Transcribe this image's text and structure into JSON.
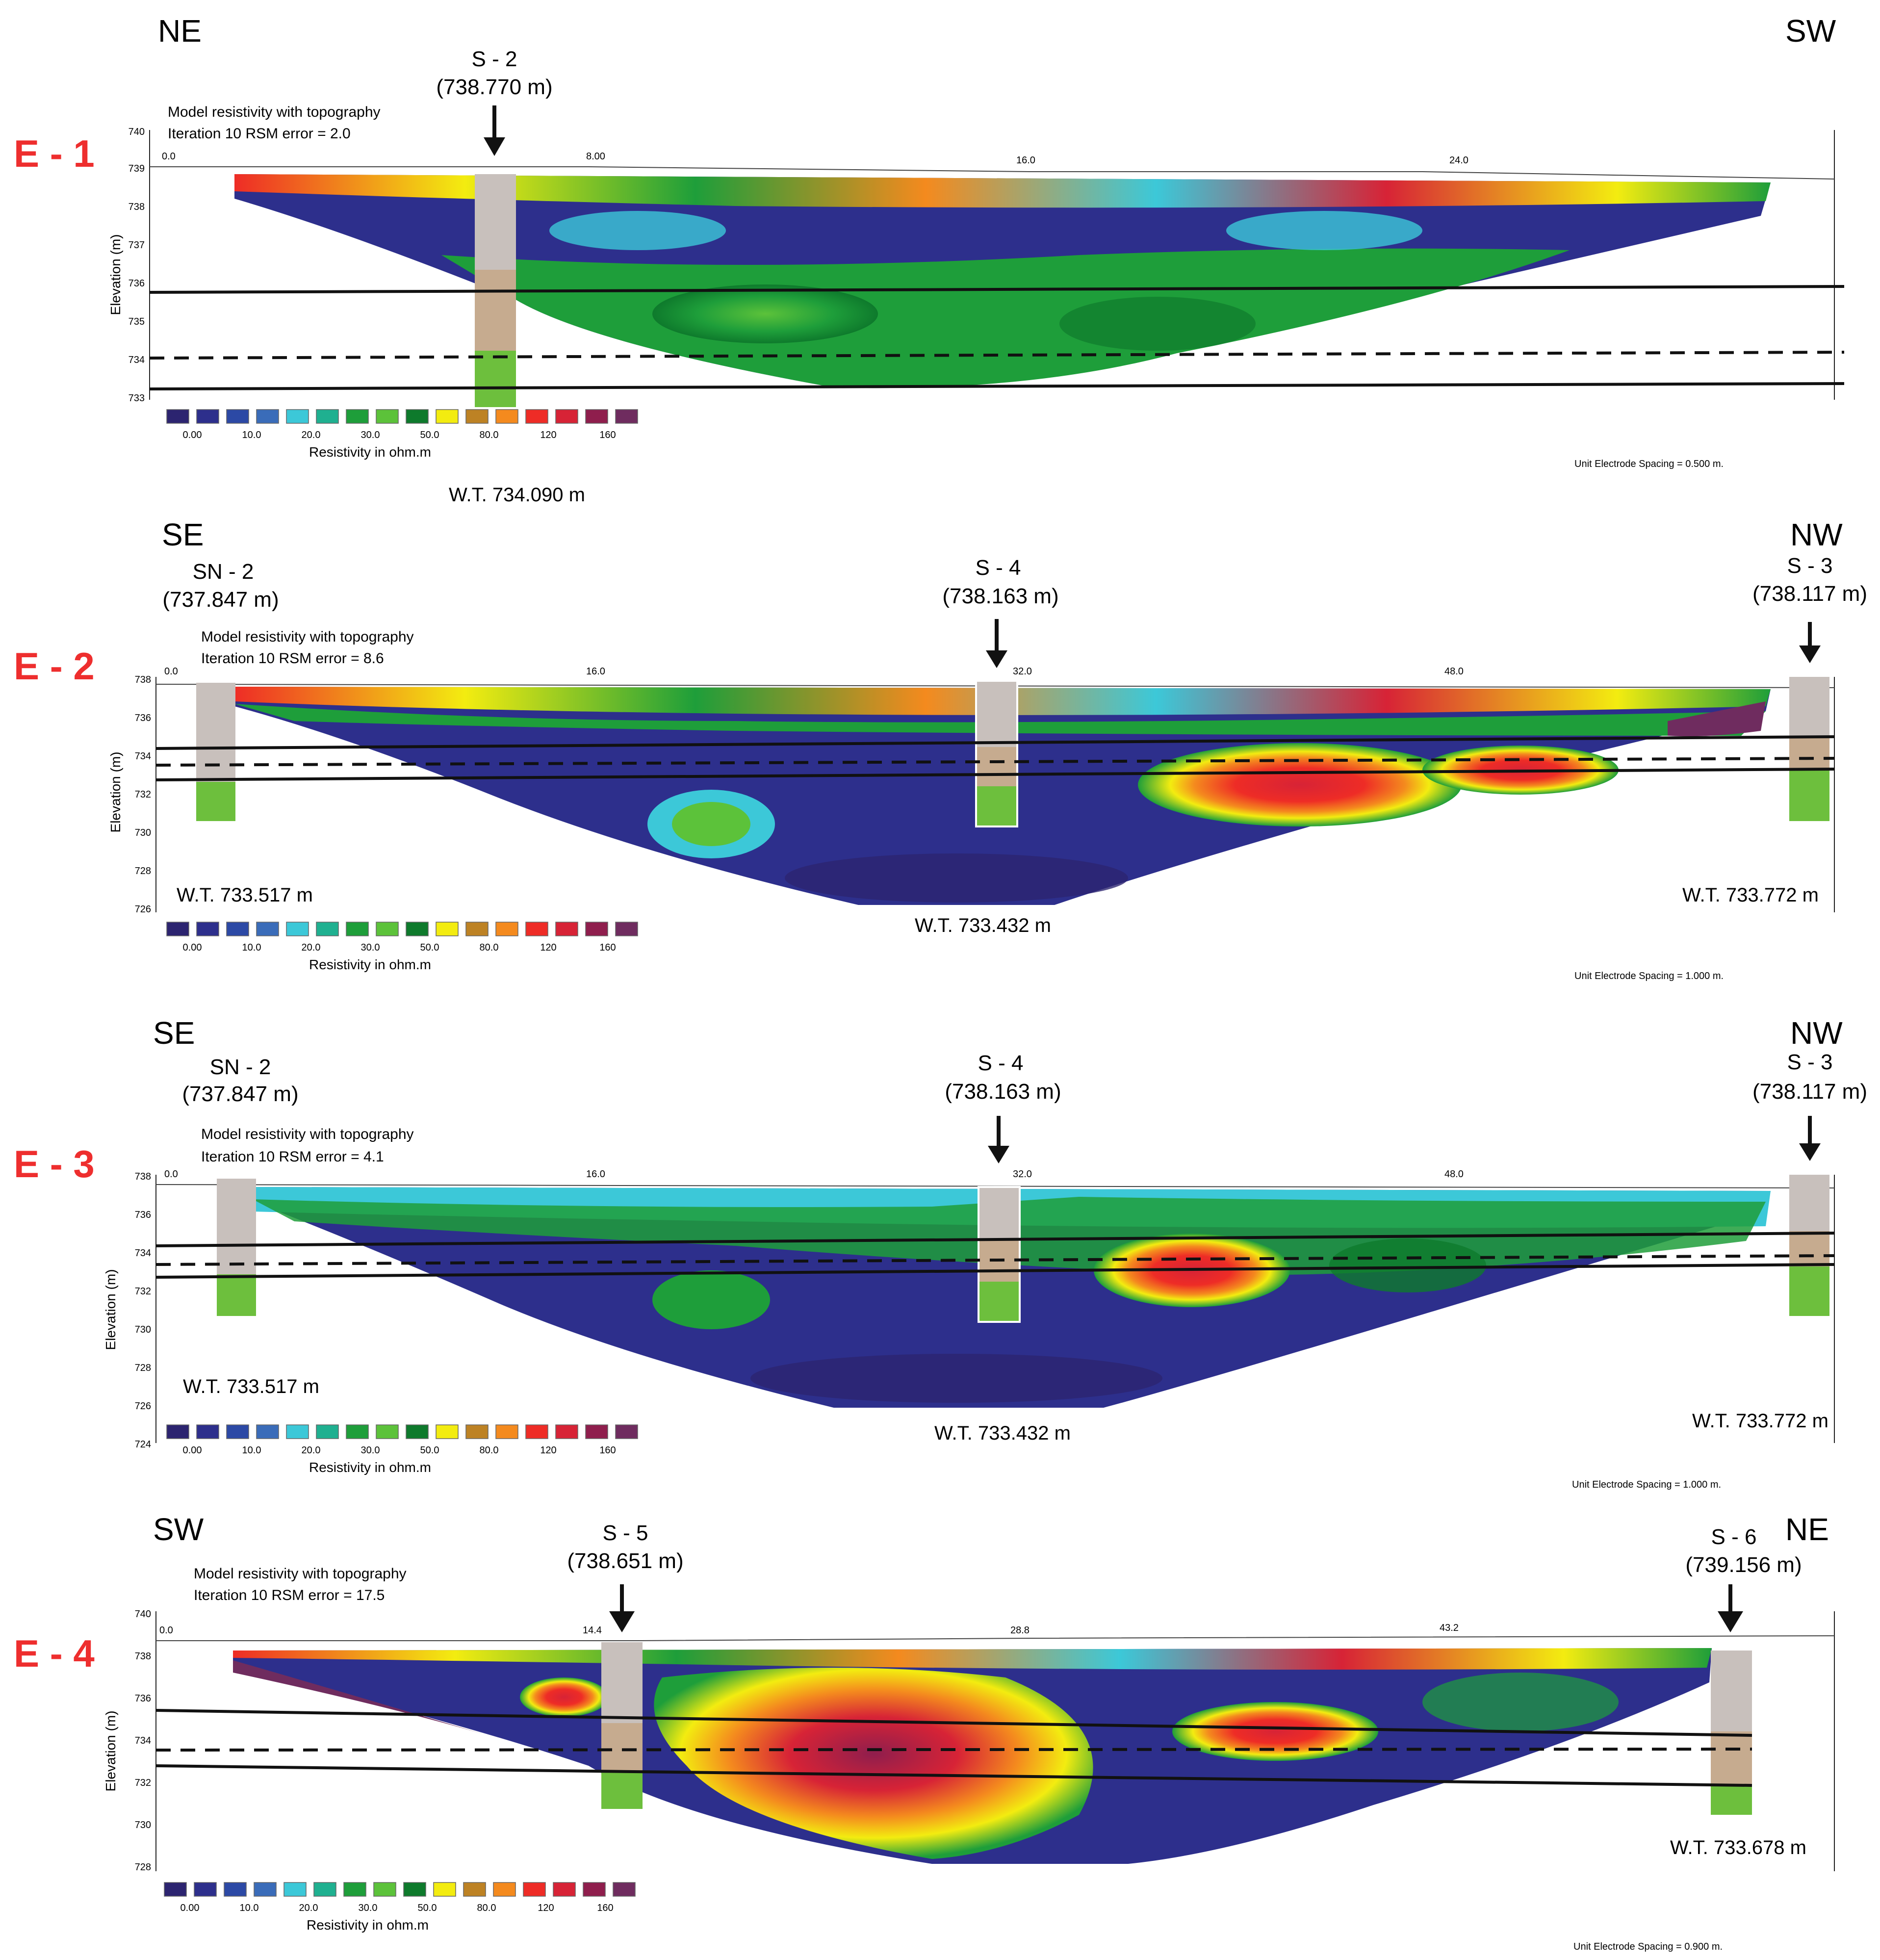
{
  "legend": {
    "ticks": [
      "0.00",
      "10.0",
      "20.0",
      "30.0",
      "50.0",
      "80.0",
      "120",
      "160"
    ],
    "title": "Resistivity in ohm.m",
    "colors": [
      "#2c2470",
      "#2d2f8c",
      "#2c49a5",
      "#3a6cb9",
      "#3cc8d8",
      "#1fb090",
      "#1e9e3a",
      "#5cc23a",
      "#0e7a2c",
      "#f3ec10",
      "#bd8224",
      "#f48a1e",
      "#ee2c26",
      "#d72336",
      "#8f1e4d",
      "#6f2c5f"
    ]
  },
  "colors": {
    "panel_label": "#ee2e2e",
    "sand": "#c6ab8f",
    "clay_top": "#c8c0bc",
    "green_layer": "#6dbf3d"
  },
  "panels": [
    {
      "id": "E - 1",
      "orient_left": "NE",
      "orient_right": "SW",
      "wells": [
        {
          "name": "S - 2",
          "elev": "(738.770 m)",
          "wt": "W.T. 734.090 m"
        }
      ],
      "model_title": "Model resistivity with topography",
      "iteration": "Iteration 10 RSM error = 2.0",
      "x_ticks": [
        "0.0",
        "8.00",
        "16.0",
        "24.0"
      ],
      "y_ticks": [
        "740",
        "739",
        "738",
        "737",
        "736",
        "735",
        "734",
        "733"
      ],
      "y_label": "Elevation (m)",
      "spacing": "Unit Electrode Spacing = 0.500 m."
    },
    {
      "id": "E - 2",
      "orient_left": "SE",
      "orient_right": "NW",
      "wells": [
        {
          "name": "SN - 2",
          "elev": "(737.847 m)",
          "wt": "W.T. 733.517 m"
        },
        {
          "name": "S - 4",
          "elev": "(738.163 m)",
          "wt": "W.T. 733.432 m"
        },
        {
          "name": "S - 3",
          "elev": "(738.117 m)",
          "wt": "W.T. 733.772 m"
        }
      ],
      "model_title": "Model resistivity with topography",
      "iteration": "Iteration 10 RSM error = 8.6",
      "x_ticks": [
        "0.0",
        "16.0",
        "32.0",
        "48.0"
      ],
      "y_ticks": [
        "738",
        "736",
        "734",
        "732",
        "730",
        "728",
        "726"
      ],
      "y_label": "Elevation (m)",
      "spacing": "Unit Electrode Spacing = 1.000 m."
    },
    {
      "id": "E - 3",
      "orient_left": "SE",
      "orient_right": "NW",
      "wells": [
        {
          "name": "SN - 2",
          "elev": "(737.847 m)",
          "wt": "W.T. 733.517 m"
        },
        {
          "name": "S - 4",
          "elev": "(738.163 m)",
          "wt": "W.T. 733.432 m"
        },
        {
          "name": "S - 3",
          "elev": "(738.117 m)",
          "wt": "W.T. 733.772 m"
        }
      ],
      "model_title": "Model resistivity with topography",
      "iteration": "Iteration 10 RSM error = 4.1",
      "x_ticks": [
        "0.0",
        "16.0",
        "32.0",
        "48.0"
      ],
      "y_ticks": [
        "738",
        "736",
        "734",
        "732",
        "730",
        "728",
        "726",
        "724"
      ],
      "y_label": "Elevation (m)",
      "spacing": "Unit Electrode Spacing = 1.000 m."
    },
    {
      "id": "E - 4",
      "orient_left": "SW",
      "orient_right": "NE",
      "wells": [
        {
          "name": "S - 5",
          "elev": "(738.651 m)"
        },
        {
          "name": "S - 6",
          "elev": "(739.156 m)",
          "wt": "W.T. 733.678 m"
        }
      ],
      "model_title": "Model resistivity with topography",
      "iteration": "Iteration 10 RSM error = 17.5",
      "x_ticks": [
        "0.0",
        "14.4",
        "28.8",
        "43.2"
      ],
      "y_ticks": [
        "740",
        "738",
        "736",
        "734",
        "732",
        "730",
        "728"
      ],
      "y_label": "Elevation (m)",
      "spacing": "Unit Electrode Spacing = 0.900 m."
    }
  ]
}
